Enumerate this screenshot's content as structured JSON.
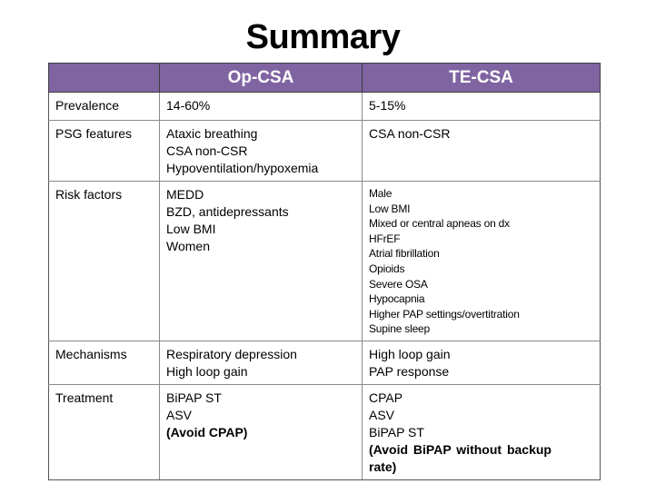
{
  "slide": {
    "title": "Summary",
    "colors": {
      "header_background": "#8064a2",
      "header_text": "#ffffff",
      "border": "#8a8a8a"
    }
  },
  "table": {
    "headers": [
      "",
      "Op-CSA",
      "TE-CSA"
    ],
    "rows": [
      {
        "label": "Prevalence",
        "op_csa": [
          "14-60%"
        ],
        "te_csa": [
          "5-15%"
        ]
      },
      {
        "label": "PSG features",
        "op_csa": [
          "Ataxic breathing",
          "CSA non-CSR",
          "Hypoventilation/hypoxemia"
        ],
        "te_csa": [
          "CSA non-CSR"
        ]
      },
      {
        "label": "Risk factors",
        "op_csa": [
          "MEDD",
          "BZD, antidepressants",
          "Low BMI",
          "Women"
        ],
        "te_csa": [
          "Male",
          "Low BMI",
          "Mixed or central apneas on dx",
          "HFrEF",
          "Atrial fibrillation",
          "Opioids",
          "Severe OSA",
          "Hypocapnia",
          "Higher PAP settings/overtitration",
          "Supine sleep"
        ]
      },
      {
        "label": "Mechanisms",
        "op_csa": [
          "Respiratory depression",
          "High loop gain"
        ],
        "te_csa": [
          "High loop gain",
          "PAP response"
        ]
      },
      {
        "label": "Treatment",
        "op_csa": [
          "BiPAP ST",
          "ASV",
          "(Avoid CPAP)"
        ],
        "te_csa": [
          "CPAP",
          "ASV",
          "BiPAP ST",
          "(Avoid BiPAP without backup",
          "rate)"
        ]
      }
    ]
  }
}
